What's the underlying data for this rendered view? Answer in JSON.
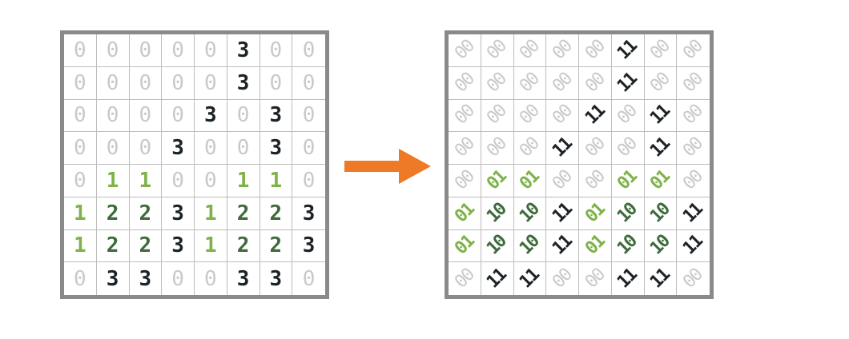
{
  "colors": {
    "zero": "#c9c9c9",
    "one": "#7fb24a",
    "two": "#3e6b3c",
    "three": "#1c2326",
    "border": "#8a8a8a",
    "arrow": "#ee7a28"
  },
  "left_grid": [
    [
      "0",
      "0",
      "0",
      "0",
      "0",
      "3",
      "0",
      "0"
    ],
    [
      "0",
      "0",
      "0",
      "0",
      "0",
      "3",
      "0",
      "0"
    ],
    [
      "0",
      "0",
      "0",
      "0",
      "3",
      "0",
      "3",
      "0"
    ],
    [
      "0",
      "0",
      "0",
      "3",
      "0",
      "0",
      "3",
      "0"
    ],
    [
      "0",
      "1",
      "1",
      "0",
      "0",
      "1",
      "1",
      "0"
    ],
    [
      "1",
      "2",
      "2",
      "3",
      "1",
      "2",
      "2",
      "3"
    ],
    [
      "1",
      "2",
      "2",
      "3",
      "1",
      "2",
      "2",
      "3"
    ],
    [
      "0",
      "3",
      "3",
      "0",
      "0",
      "3",
      "3",
      "0"
    ]
  ],
  "right_grid": [
    [
      "00",
      "00",
      "00",
      "00",
      "00",
      "11",
      "00",
      "00"
    ],
    [
      "00",
      "00",
      "00",
      "00",
      "00",
      "11",
      "00",
      "00"
    ],
    [
      "00",
      "00",
      "00",
      "00",
      "11",
      "00",
      "11",
      "00"
    ],
    [
      "00",
      "00",
      "00",
      "11",
      "00",
      "00",
      "11",
      "00"
    ],
    [
      "00",
      "01",
      "01",
      "00",
      "00",
      "01",
      "01",
      "00"
    ],
    [
      "01",
      "10",
      "10",
      "11",
      "01",
      "10",
      "10",
      "11"
    ],
    [
      "01",
      "10",
      "10",
      "11",
      "01",
      "10",
      "10",
      "11"
    ],
    [
      "00",
      "11",
      "11",
      "00",
      "00",
      "11",
      "11",
      "00"
    ]
  ],
  "arrow_icon": "right-arrow"
}
